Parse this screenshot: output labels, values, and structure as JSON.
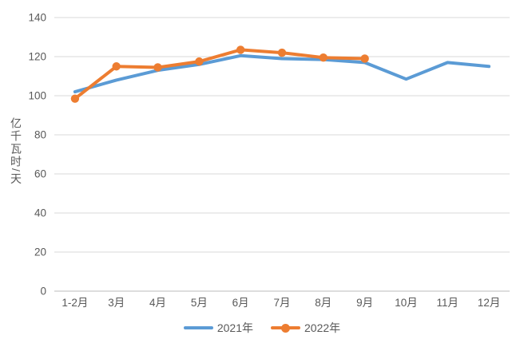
{
  "chart_data": {
    "type": "line",
    "title": "",
    "xlabel": "",
    "ylabel": "亿千瓦时/天",
    "categories": [
      "1-2月",
      "3月",
      "4月",
      "5月",
      "6月",
      "7月",
      "8月",
      "9月",
      "10月",
      "11月",
      "12月"
    ],
    "series": [
      {
        "name": "2021年",
        "color": "#5B9BD5",
        "marker": false,
        "values": [
          102,
          108,
          113,
          116,
          120.5,
          119,
          118.5,
          117,
          108.5,
          117,
          115
        ]
      },
      {
        "name": "2022年",
        "color": "#ED7D31",
        "marker": true,
        "values": [
          98.5,
          115,
          114.5,
          117.5,
          123.5,
          122,
          119.5,
          119
        ]
      }
    ],
    "ylim": [
      0,
      140
    ],
    "y_ticks": [
      0,
      20,
      40,
      60,
      80,
      100,
      120,
      140
    ],
    "grid": true,
    "legend_position": "bottom"
  },
  "styles": {
    "grid_color": "#D9D9D9",
    "axis_line_color": "#D2D2D2",
    "axis_text_color": "#595959",
    "background": "#FFFFFF"
  }
}
